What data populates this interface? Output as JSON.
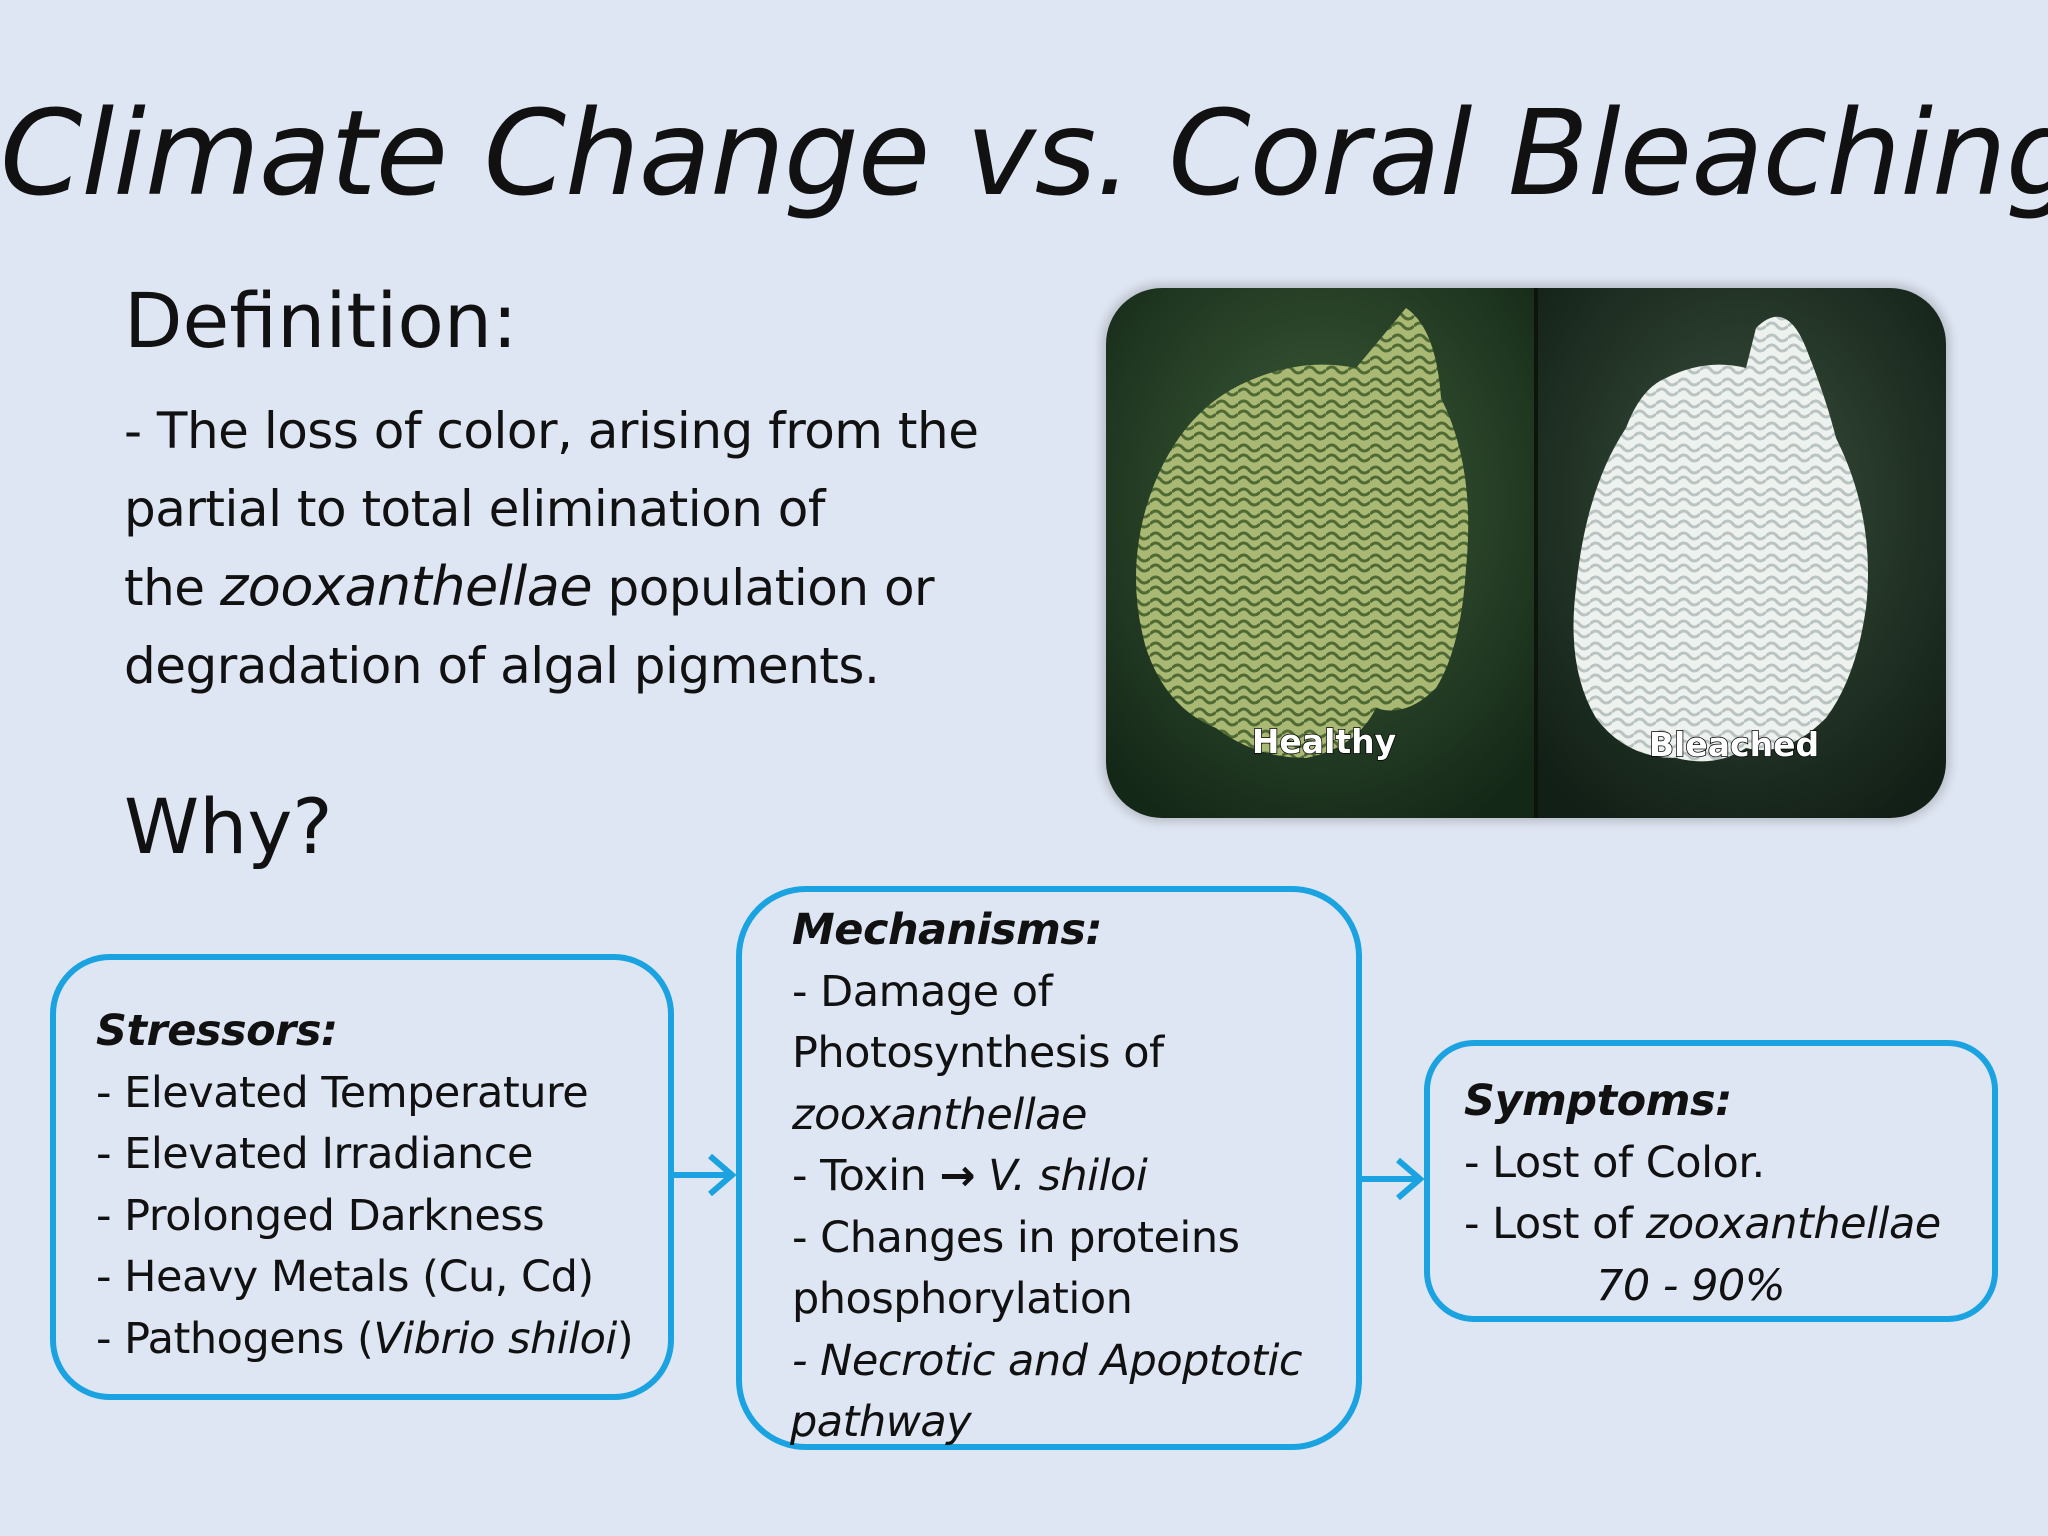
{
  "slide": {
    "title": "Climate Change vs. Coral Bleaching",
    "definition_heading": "Definition:",
    "definition_lines": [
      "- The loss of color, arising from the",
      "partial to total elimination of",
      "the ",
      "zooxanthellae",
      " population or",
      "degradation of algal pigments."
    ],
    "why_heading": "Why?"
  },
  "photo": {
    "healthy_label": "Healthy",
    "bleached_label": "Bleached",
    "colors": {
      "healthy": "#8fa55c",
      "bleached": "#e6ece8",
      "background": "#1f3a24"
    }
  },
  "stressors": {
    "heading": "Stressors:",
    "items": [
      "- Elevated Temperature",
      "- Elevated Irradiance",
      "- Prolonged Darkness",
      "- Heavy Metals (Cu, Cd)"
    ],
    "last_prefix": "- Pathogens (",
    "last_italic": "Vibrio shiloi",
    "last_suffix": ")"
  },
  "mechanisms": {
    "heading": "Mechanisms:",
    "line1": "- Damage of",
    "line2": "Photosynthesis of",
    "line3_italic": "zooxanthellae",
    "toxin_prefix": "- Toxin ",
    "toxin_arrow": "→",
    "toxin_italic": " V. shiloi",
    "line5": "- Changes in proteins",
    "line6": "phosphorylation",
    "line7_italic": "- Necrotic and Apoptotic",
    "line8_italic": "pathway"
  },
  "symptoms": {
    "heading": "Symptoms:",
    "line1": "- Lost of Color.",
    "line2_prefix": "- Lost of ",
    "line2_italic": "zooxanthellae",
    "line3_italic": "70 -  90%"
  },
  "colors": {
    "accent": "#1aa3e0",
    "background": "#dfe6f3"
  }
}
